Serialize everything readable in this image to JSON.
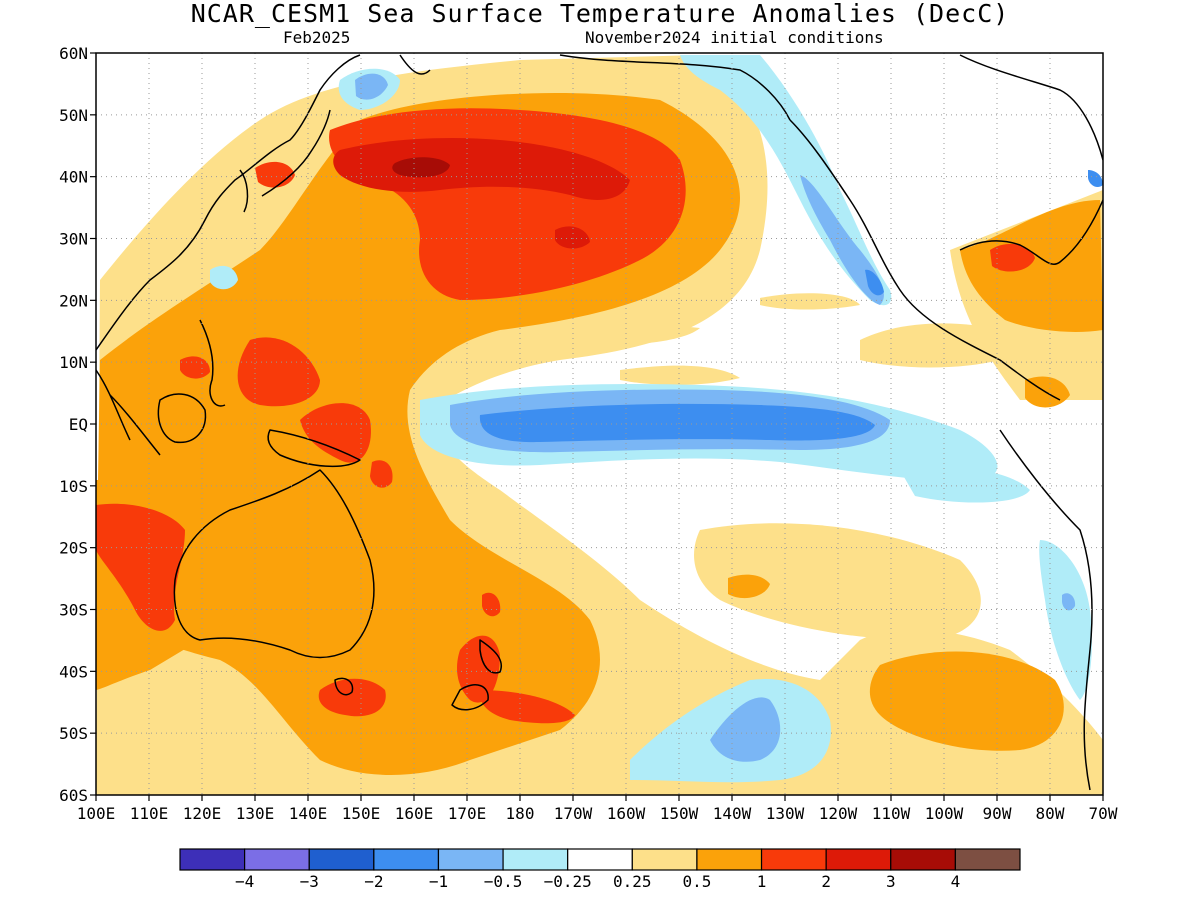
{
  "title": "NCAR_CESM1 Sea Surface Temperature Anomalies (DecC)",
  "subtitle_left": "Feb2025",
  "subtitle_right": "November2024 initial conditions",
  "colors": {
    "c_n4": "#3d2fb8",
    "c_n3": "#7b6ee6",
    "c_n2": "#1f5fcf",
    "c_n1": "#3d8ef0",
    "c_n05": "#7ab6f5",
    "c_n025": "#b0ecf8",
    "c_0": "#ffffff",
    "c_p025": "#fde08a",
    "c_p05": "#fba20a",
    "c_p1": "#f83a0a",
    "c_p2": "#dd1a08",
    "c_p3": "#a70c06",
    "c_p4": "#7d4f42"
  },
  "map_data": {
    "projection": "cylindrical-equidistant",
    "lon_range": [
      100,
      290
    ],
    "lat_range": [
      -60,
      60
    ],
    "grid": true,
    "lat_labels": [
      "60N",
      "50N",
      "40N",
      "30N",
      "20N",
      "10N",
      "EQ",
      "10S",
      "20S",
      "30S",
      "40S",
      "50S",
      "60S"
    ],
    "lon_labels": [
      "100E",
      "110E",
      "120E",
      "130E",
      "140E",
      "150E",
      "160E",
      "170E",
      "180",
      "170W",
      "160W",
      "150W",
      "140W",
      "130W",
      "120W",
      "110W",
      "100W",
      "90W",
      "80W",
      "70W"
    ]
  },
  "colorbar": {
    "colors": [
      "#3d2fb8",
      "#7b6ee6",
      "#1f5fcf",
      "#3d8ef0",
      "#7ab6f5",
      "#b0ecf8",
      "#ffffff",
      "#fde08a",
      "#fba20a",
      "#f83a0a",
      "#dd1a08",
      "#a70c06",
      "#7d4f42"
    ],
    "labels": [
      "−4",
      "−3",
      "−2",
      "−1",
      "−0.5",
      "−0.25",
      "0.25",
      "0.5",
      "1",
      "2",
      "3",
      "4"
    ]
  }
}
